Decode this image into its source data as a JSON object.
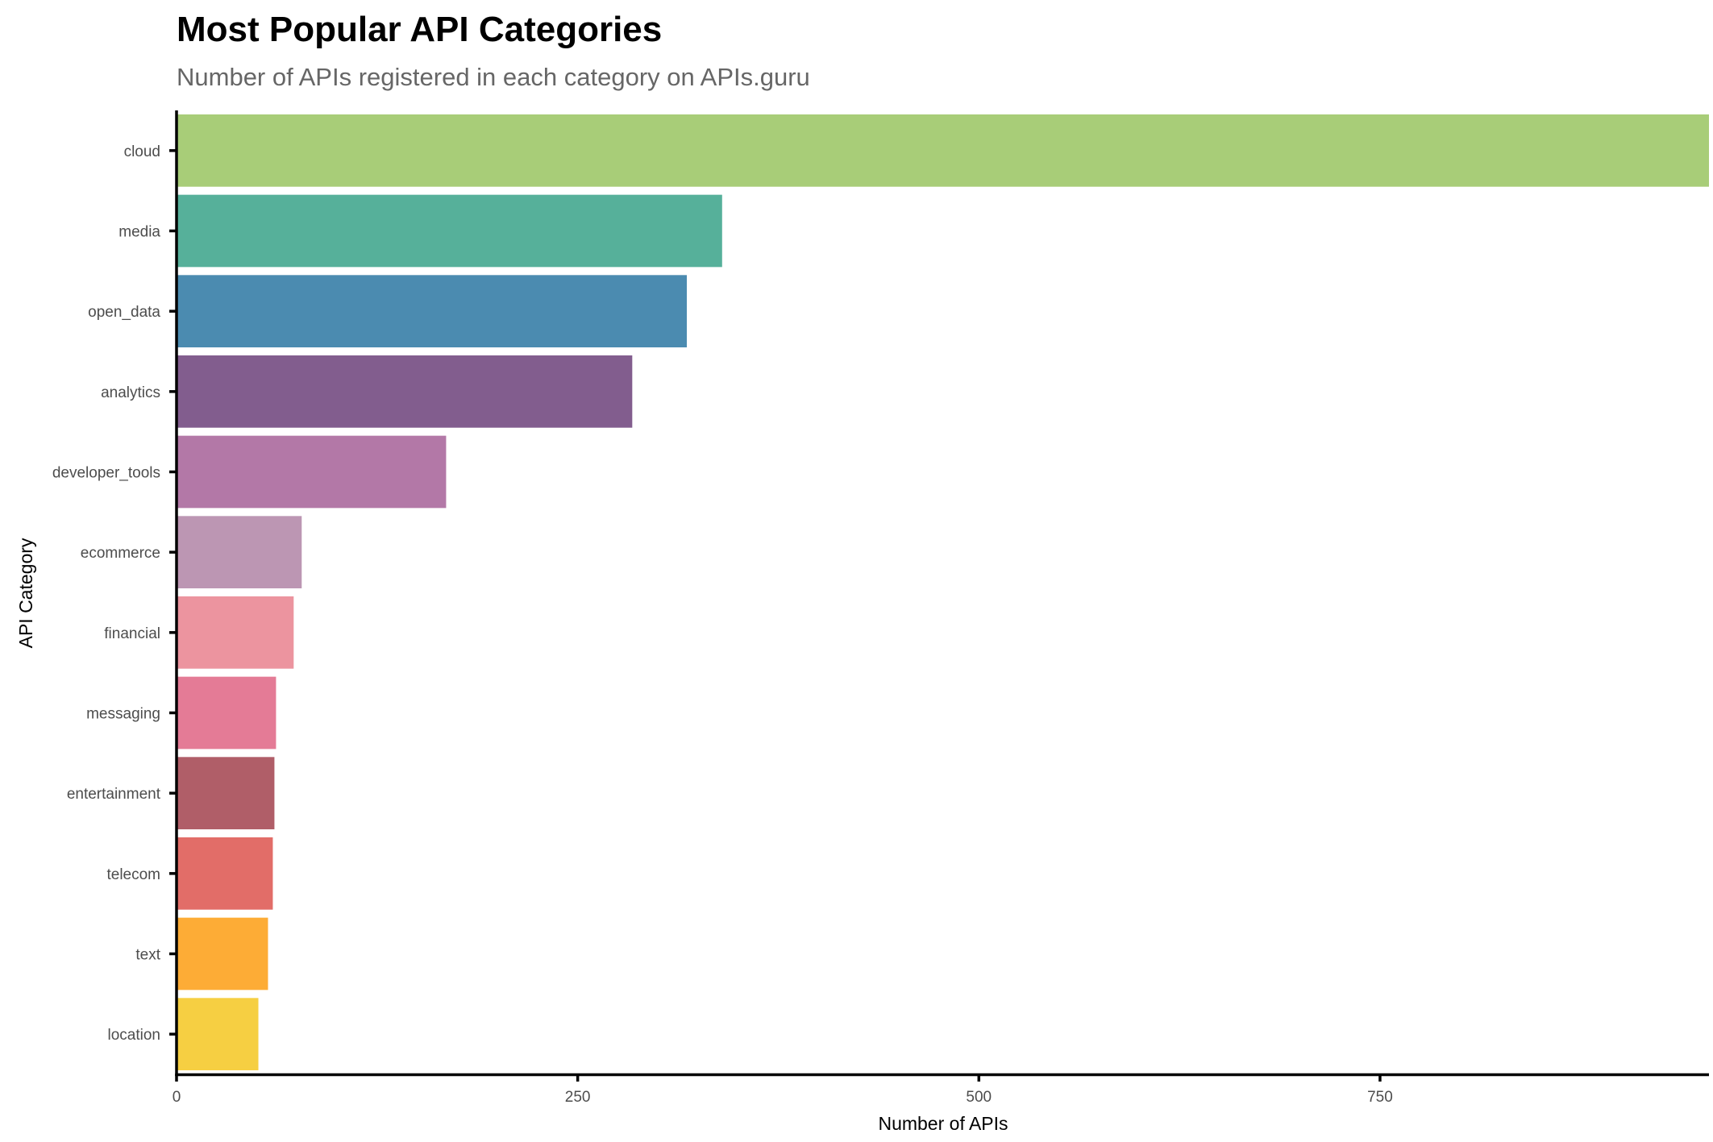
{
  "chart_data": {
    "type": "bar",
    "orientation": "horizontal",
    "title": "Most Popular API Categories",
    "subtitle": "Number of APIs registered in each category on APIs.guru",
    "xlabel": "Number of APIs",
    "ylabel": "API Category",
    "xlim": [
      0,
      955
    ],
    "xticks": [
      0,
      250,
      500,
      750
    ],
    "grid": false,
    "legend": "none",
    "categories": [
      "cloud",
      "media",
      "open_data",
      "analytics",
      "developer_tools",
      "ecommerce",
      "financial",
      "messaging",
      "entertainment",
      "telecom",
      "text",
      "location"
    ],
    "values": [
      955,
      340,
      318,
      284,
      168,
      78,
      73,
      62,
      61,
      60,
      57,
      51
    ],
    "colors": [
      "#a8cd78",
      "#56b09a",
      "#4b8bb0",
      "#825d8e",
      "#b378a7",
      "#bc96b3",
      "#ec949f",
      "#e47b96",
      "#b05e68",
      "#e26d68",
      "#fdac36",
      "#f6cf42"
    ]
  }
}
